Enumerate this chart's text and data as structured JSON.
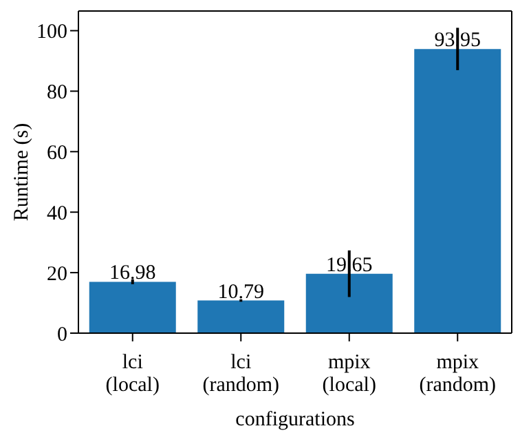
{
  "chart_data": {
    "type": "bar",
    "xlabel": "configurations",
    "ylabel": "Runtime (s)",
    "categories": [
      "lci\n(local)",
      "lci\n(random)",
      "mpix\n(local)",
      "mpix\n(random)"
    ],
    "values": [
      16.98,
      10.79,
      19.65,
      93.95
    ],
    "errors": [
      0.8,
      0.4,
      7.7,
      7
    ],
    "color": "#1f77b4",
    "ylim": [
      0,
      106.5
    ],
    "yticks": [
      0,
      20,
      40,
      60,
      80,
      100
    ],
    "data_labels": true,
    "grid": false,
    "legend": false
  }
}
